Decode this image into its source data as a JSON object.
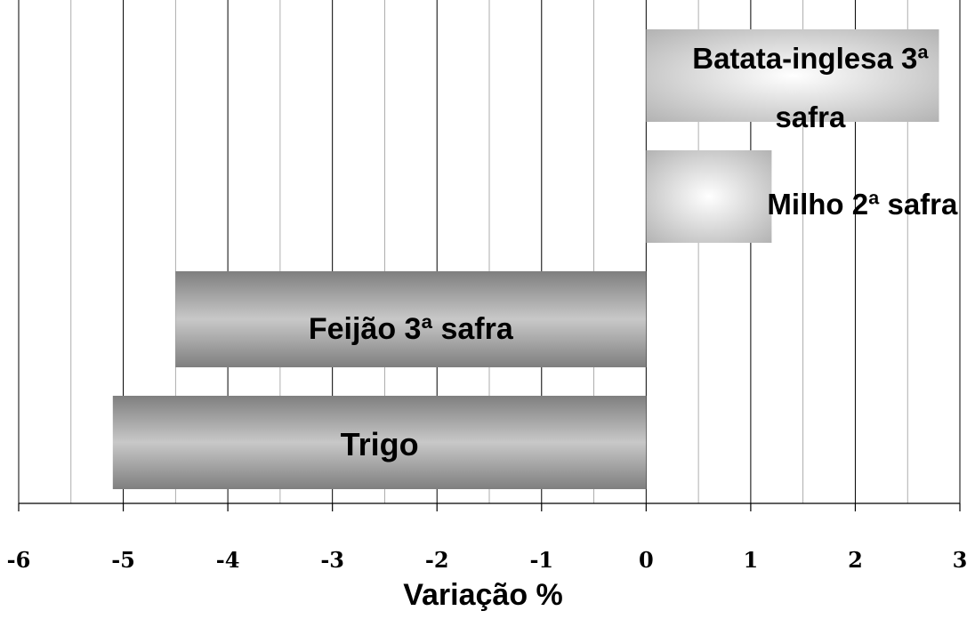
{
  "chart_data": {
    "type": "bar",
    "orientation": "horizontal",
    "title": "",
    "xlabel": "Variação %",
    "ylabel": "",
    "xlim": [
      -6,
      3
    ],
    "x_ticks": [
      -6,
      -5,
      -4,
      -3,
      -2,
      -1,
      0,
      1,
      2,
      3
    ],
    "x_tick_labels": [
      "-6",
      "-5",
      "-4",
      "-3",
      "-2",
      "-1",
      "0",
      "1",
      "2",
      "3"
    ],
    "grid": "vertical, every 0.5",
    "categories": [
      "Batata-inglesa 3ª safra",
      "Milho 2ª safra",
      "Feijão 3ª safra",
      "Trigo"
    ],
    "values": [
      2.8,
      1.2,
      -4.5,
      -5.1
    ],
    "colors": {
      "positive_bar_edge": "#b3b3b3",
      "positive_bar_center": "#ffffff",
      "negative_bar_edge": "#7f7f7f",
      "negative_bar_center": "#c8c8c8"
    }
  }
}
